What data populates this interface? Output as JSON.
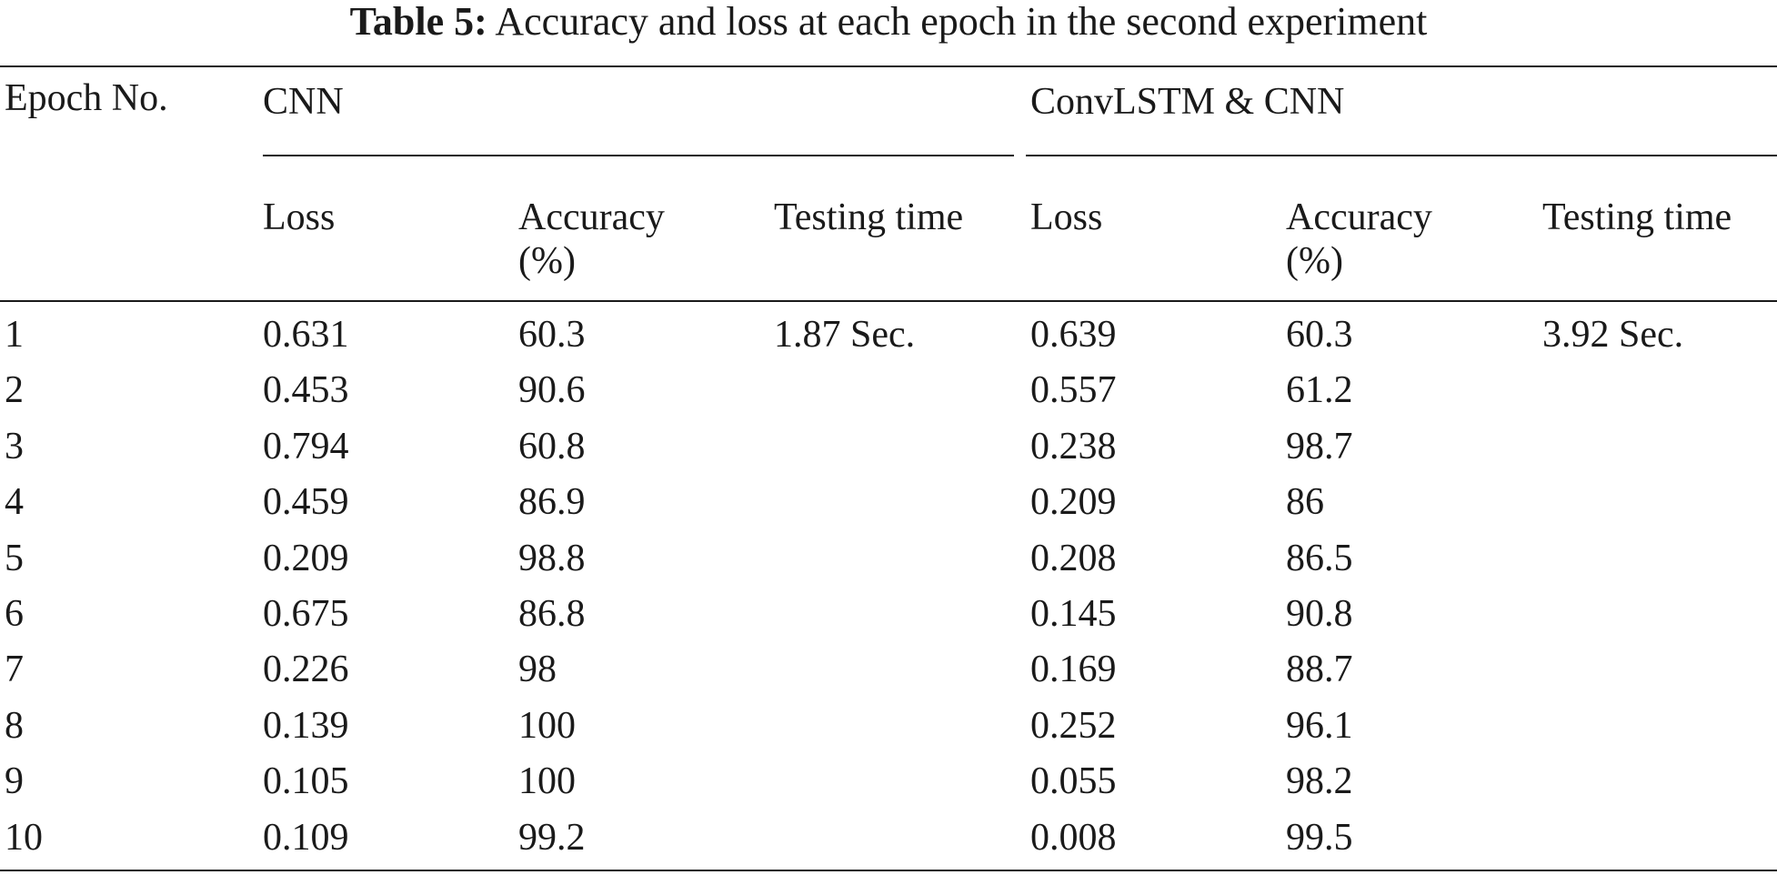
{
  "caption": {
    "label": "Table 5:",
    "text": "Accuracy and loss at each epoch in the second experiment"
  },
  "header": {
    "epoch": "Epoch No.",
    "group_cnn": "CNN",
    "group_convlstm": "ConvLSTM & CNN",
    "loss": "Loss",
    "accuracy_line1": "Accuracy",
    "accuracy_line2": "(%)",
    "testing_time": "Testing time"
  },
  "rows": [
    {
      "epoch": "1",
      "cnn_loss": "0.631",
      "cnn_acc": "60.3",
      "cnn_time": "1.87 Sec.",
      "cl_loss": "0.639",
      "cl_acc": "60.3",
      "cl_time": "3.92 Sec."
    },
    {
      "epoch": "2",
      "cnn_loss": "0.453",
      "cnn_acc": "90.6",
      "cnn_time": "",
      "cl_loss": "0.557",
      "cl_acc": "61.2",
      "cl_time": ""
    },
    {
      "epoch": "3",
      "cnn_loss": "0.794",
      "cnn_acc": "60.8",
      "cnn_time": "",
      "cl_loss": "0.238",
      "cl_acc": "98.7",
      "cl_time": ""
    },
    {
      "epoch": "4",
      "cnn_loss": "0.459",
      "cnn_acc": "86.9",
      "cnn_time": "",
      "cl_loss": "0.209",
      "cl_acc": "86",
      "cl_time": ""
    },
    {
      "epoch": "5",
      "cnn_loss": "0.209",
      "cnn_acc": "98.8",
      "cnn_time": "",
      "cl_loss": "0.208",
      "cl_acc": "86.5",
      "cl_time": ""
    },
    {
      "epoch": "6",
      "cnn_loss": "0.675",
      "cnn_acc": "86.8",
      "cnn_time": "",
      "cl_loss": "0.145",
      "cl_acc": "90.8",
      "cl_time": ""
    },
    {
      "epoch": "7",
      "cnn_loss": "0.226",
      "cnn_acc": "98",
      "cnn_time": "",
      "cl_loss": "0.169",
      "cl_acc": "88.7",
      "cl_time": ""
    },
    {
      "epoch": "8",
      "cnn_loss": "0.139",
      "cnn_acc": "100",
      "cnn_time": "",
      "cl_loss": "0.252",
      "cl_acc": "96.1",
      "cl_time": ""
    },
    {
      "epoch": "9",
      "cnn_loss": "0.105",
      "cnn_acc": "100",
      "cnn_time": "",
      "cl_loss": "0.055",
      "cl_acc": "98.2",
      "cl_time": ""
    },
    {
      "epoch": "10",
      "cnn_loss": "0.109",
      "cnn_acc": "99.2",
      "cnn_time": "",
      "cl_loss": "0.008",
      "cl_acc": "99.5",
      "cl_time": ""
    }
  ]
}
